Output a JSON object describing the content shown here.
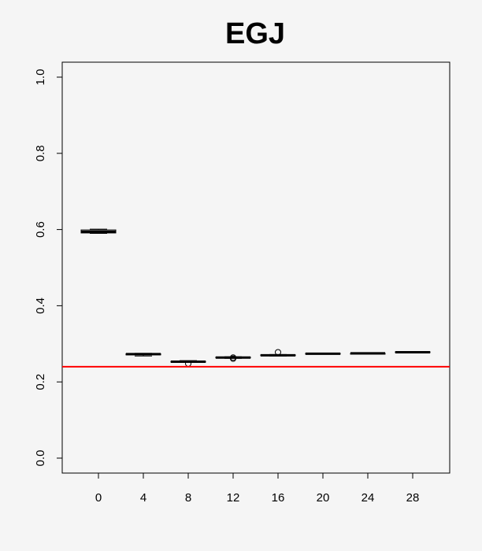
{
  "chart_data": {
    "type": "box",
    "title": "EGJ",
    "xlabel": "",
    "ylabel": "",
    "categories": [
      "0",
      "4",
      "8",
      "12",
      "16",
      "20",
      "24",
      "28"
    ],
    "ylim": [
      0.0,
      1.0
    ],
    "y_ticks": [
      "0.0",
      "0.2",
      "0.4",
      "0.6",
      "0.8",
      "1.0"
    ],
    "boxes": [
      {
        "category": "0",
        "whisker_low": 0.59,
        "q1": 0.591,
        "median": 0.594,
        "q3": 0.599,
        "whisker_high": 0.601,
        "outliers": []
      },
      {
        "category": "4",
        "whisker_low": 0.268,
        "q1": 0.271,
        "median": 0.273,
        "q3": 0.274,
        "whisker_high": 0.275,
        "outliers": []
      },
      {
        "category": "8",
        "whisker_low": 0.251,
        "q1": 0.252,
        "median": 0.253,
        "q3": 0.254,
        "whisker_high": 0.256,
        "outliers": [
          0.248
        ]
      },
      {
        "category": "12",
        "whisker_low": 0.262,
        "q1": 0.263,
        "median": 0.264,
        "q3": 0.265,
        "whisker_high": 0.266,
        "outliers": [
          0.261,
          0.264
        ]
      },
      {
        "category": "16",
        "whisker_low": 0.268,
        "q1": 0.269,
        "median": 0.27,
        "q3": 0.271,
        "whisker_high": 0.272,
        "outliers": [
          0.278
        ]
      },
      {
        "category": "20",
        "whisker_low": 0.273,
        "q1": 0.273,
        "median": 0.274,
        "q3": 0.275,
        "whisker_high": 0.275,
        "outliers": []
      },
      {
        "category": "24",
        "whisker_low": 0.274,
        "q1": 0.274,
        "median": 0.275,
        "q3": 0.275,
        "whisker_high": 0.276,
        "outliers": []
      },
      {
        "category": "28",
        "whisker_low": 0.276,
        "q1": 0.277,
        "median": 0.278,
        "q3": 0.279,
        "whisker_high": 0.28,
        "outliers": []
      }
    ],
    "reference_line": {
      "y": 0.24,
      "color": "#ff0000"
    },
    "grid": false,
    "colors": {
      "box_fill": "#d3d3d3",
      "stroke": "#000000",
      "background": "#f5f5f5"
    }
  }
}
